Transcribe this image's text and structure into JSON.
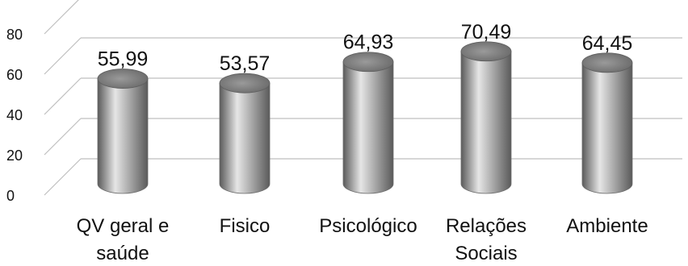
{
  "chart_data": {
    "type": "bar",
    "style": "3d-cylinder",
    "title": "",
    "xlabel": "",
    "ylabel": "",
    "categories": [
      [
        "QV geral e",
        "saúde"
      ],
      [
        "Fisico"
      ],
      [
        "Psicológico"
      ],
      [
        "Relações",
        "Sociais"
      ],
      [
        "Ambiente"
      ]
    ],
    "values": [
      55.99,
      53.57,
      64.93,
      70.49,
      64.45
    ],
    "value_labels": [
      "55,99",
      "53,57",
      "64,93",
      "70,49",
      "64,45"
    ],
    "yticks": [
      0,
      20,
      40,
      60,
      80
    ],
    "ylim": [
      0,
      100
    ],
    "grid": true,
    "legend": "none",
    "colors": {
      "bar_dark": "#5a5a5a",
      "bar_light": "#e6e6e6",
      "gridline": "#bfbfbf",
      "text": "#111111"
    }
  }
}
